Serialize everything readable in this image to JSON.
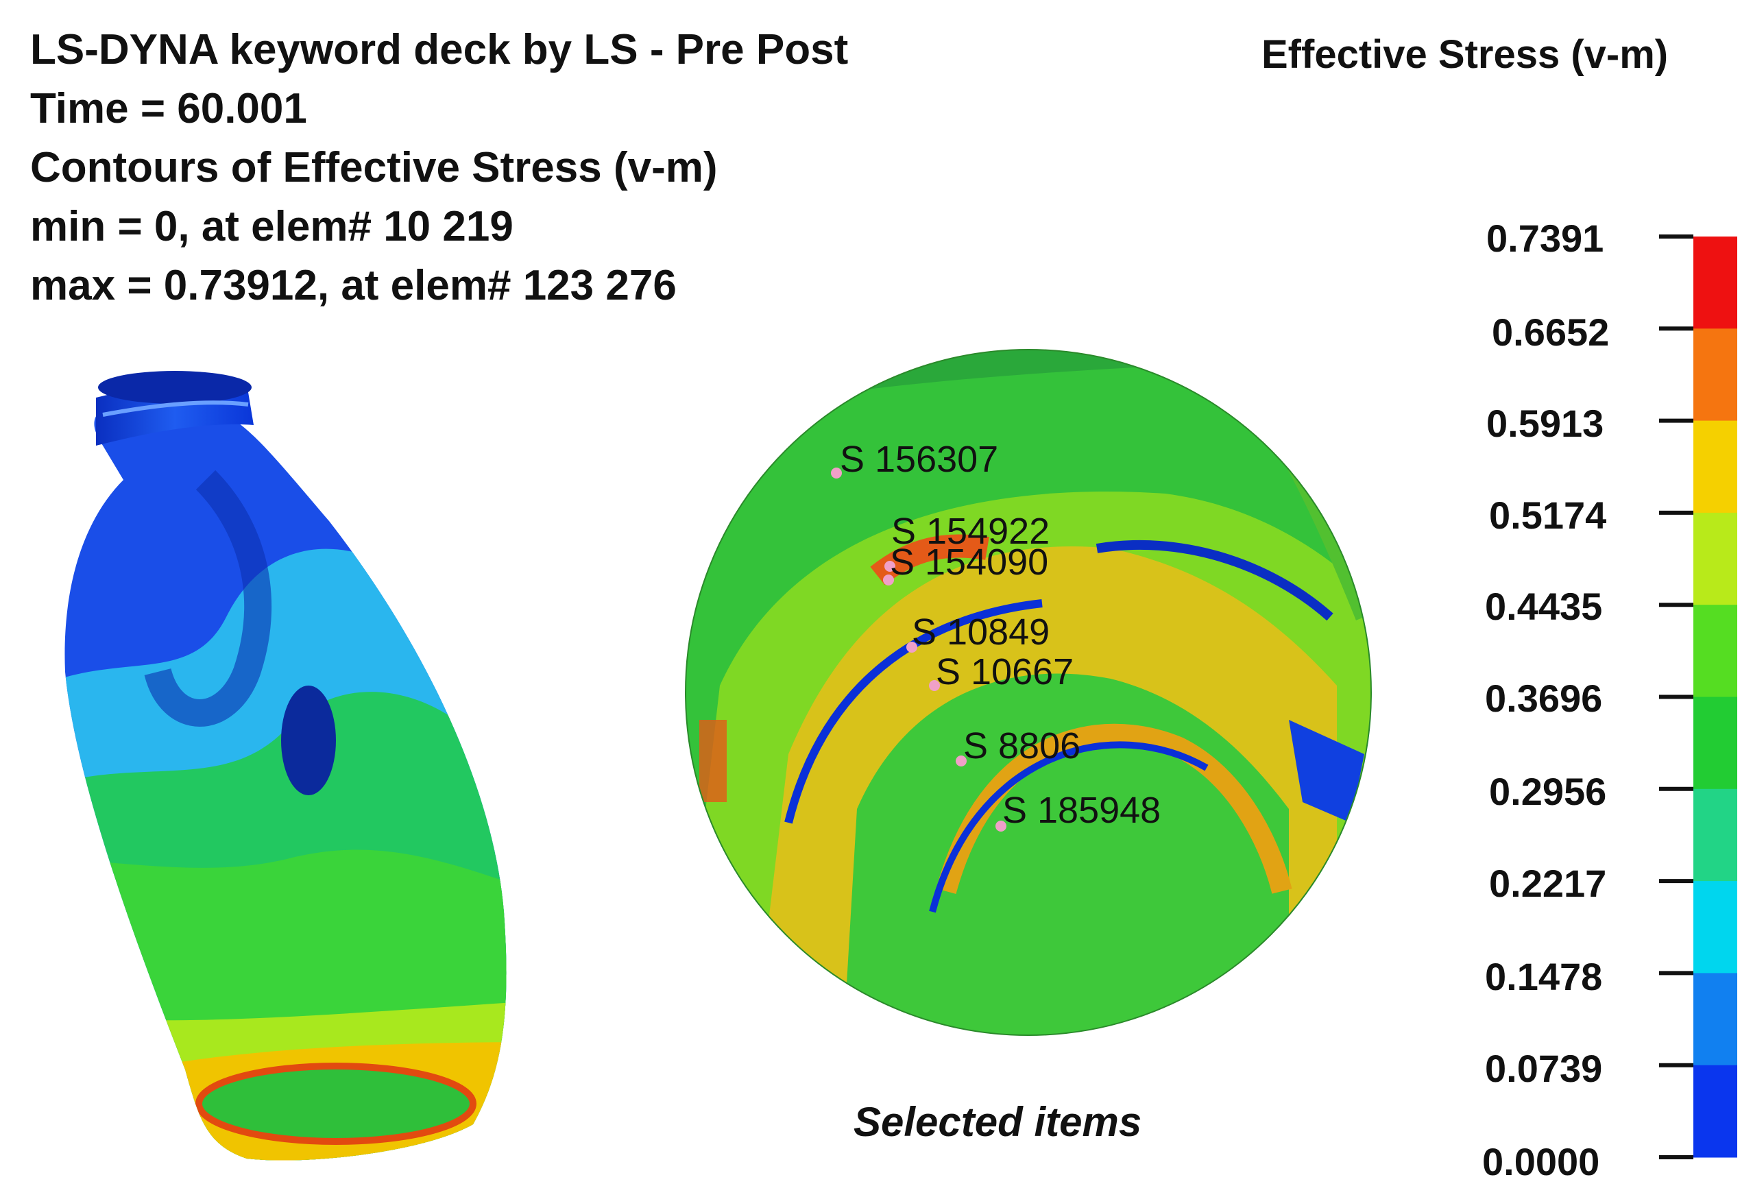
{
  "header": {
    "line1": "LS-DYNA keyword deck by LS - Pre Post",
    "line2": "Time = 60.001",
    "line3": "Contours of  Effective Stress (v-m)",
    "line4": "min = 0, at  elem# 10 219",
    "line5": "max = 0.73912, at elem# 123 276"
  },
  "legend": {
    "title": "Effective Stress (v-m)",
    "levels": [
      "0.7391",
      "0.6652",
      "0.5913",
      "0.5174",
      "0.4435",
      "0.3696",
      "0.2956",
      "0.2217",
      "0.1478",
      "0.0739",
      "0.0000"
    ],
    "colors": [
      "#ee1111",
      "#f57510",
      "#f5d000",
      "#b8ea1a",
      "#55dd22",
      "#22cc33",
      "#22d486",
      "#00d6ee",
      "#1180f0",
      "#0a36ee"
    ]
  },
  "detail": {
    "caption": "Selected items",
    "nodes": [
      "S 156307",
      "S 154922",
      "S 154090",
      "S 10849",
      "S 10667",
      "S 8806",
      "S 185948"
    ],
    "marker_color": "#f0a0c8"
  }
}
